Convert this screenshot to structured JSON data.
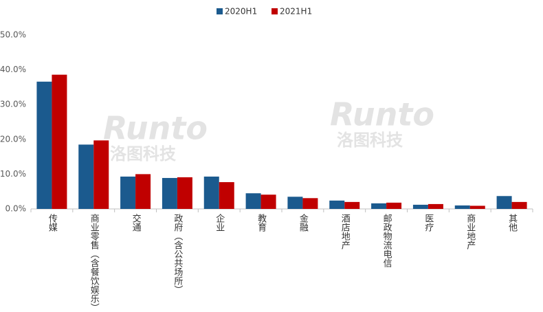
{
  "chart_data": {
    "type": "bar",
    "categories": [
      "传媒",
      "商业零售（含餐饮娱乐）",
      "交通",
      "政府（含公共场所）",
      "企业",
      "教育",
      "金融",
      "酒店地产",
      "邮政物流电信",
      "医疗",
      "商业地产",
      "其他"
    ],
    "series": [
      {
        "name": "2020H1",
        "color": "#1b5a8e",
        "values": [
          36.6,
          18.5,
          9.3,
          8.9,
          9.3,
          4.5,
          3.5,
          2.4,
          1.6,
          1.2,
          1.0,
          3.7
        ]
      },
      {
        "name": "2021H1",
        "color": "#c00000",
        "values": [
          38.6,
          19.7,
          10.0,
          9.1,
          7.7,
          4.1,
          3.1,
          2.0,
          1.8,
          1.4,
          0.9,
          2.0
        ]
      }
    ],
    "ylim": [
      0,
      50
    ],
    "yticks": [
      {
        "value": 0,
        "label": "0.0%"
      },
      {
        "value": 10,
        "label": "10.0%"
      },
      {
        "value": 20,
        "label": "20.0%"
      },
      {
        "value": 30,
        "label": "30.0%"
      },
      {
        "value": 40,
        "label": "40.0%"
      },
      {
        "value": 50,
        "label": "50.0%"
      }
    ],
    "grid": false,
    "legend": "top",
    "watermark": "Runto",
    "watermark_sub": "洛图科技"
  }
}
